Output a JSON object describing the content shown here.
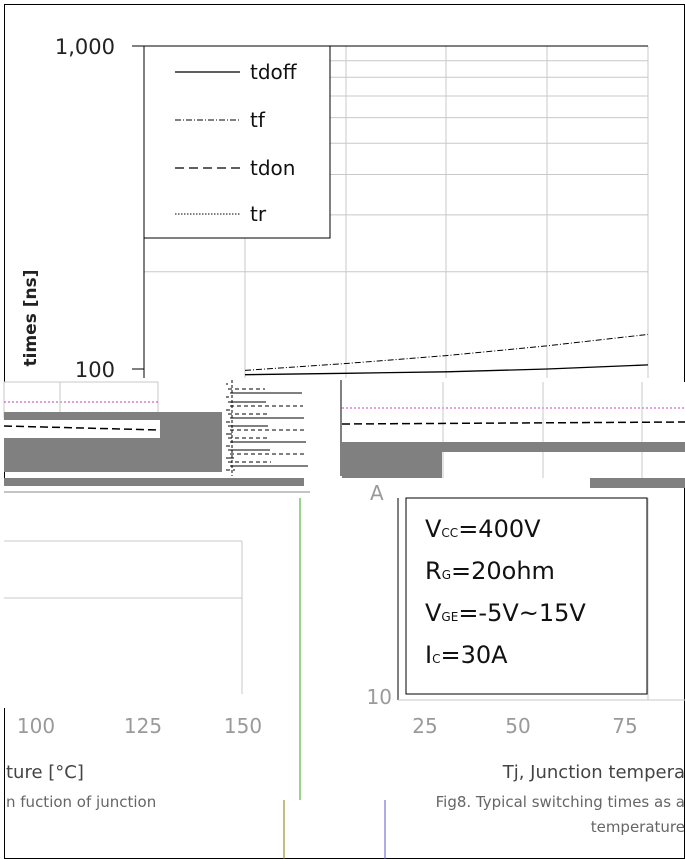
{
  "chart_data": [
    {
      "type": "line",
      "scale": "log-y",
      "ylabel": "times [ns]",
      "y_ticks": [
        "1,000",
        "100"
      ],
      "ylim": [
        100,
        1000
      ],
      "legend_position": "top-left",
      "x": [
        25,
        50,
        75,
        100,
        125,
        150
      ],
      "series": [
        {
          "name": "tdoff",
          "style": "solid",
          "values": [
            95,
            96,
            97,
            98,
            100,
            103
          ]
        },
        {
          "name": "tf",
          "style": "dash-dot",
          "values": [
            96,
            99,
            104,
            110,
            118,
            128
          ]
        },
        {
          "name": "tdon",
          "style": "dashed",
          "values": [
            null,
            null,
            null,
            null,
            null,
            null
          ]
        },
        {
          "name": "tr",
          "style": "dotted",
          "values": [
            null,
            null,
            null,
            null,
            null,
            null
          ]
        }
      ]
    },
    {
      "type": "line",
      "x_ticks": [
        "100",
        "125",
        "150"
      ],
      "xlabel": "ture [°C]",
      "caption": "n fuction of junction"
    },
    {
      "type": "line",
      "scale": "log-y",
      "y_ticks": [
        "10"
      ],
      "x_ticks": [
        "25",
        "50",
        "75"
      ],
      "xlabel": "Tj, Junction tempera",
      "caption_lines": [
        "Fig8. Typical switching times as a",
        "temperature"
      ],
      "conditions": [
        {
          "main": "V",
          "sub": "CC",
          "rest": "=400V"
        },
        {
          "main": "R",
          "sub": "G",
          "rest": "=20ohm"
        },
        {
          "main": "V",
          "sub": "GE",
          "rest": "=-5V~15V"
        },
        {
          "main": "I",
          "sub": "C",
          "rest": "=30A"
        }
      ]
    }
  ],
  "colors": {
    "axis": "#000000",
    "grid": "#c8c8c8",
    "overlay": "#808080",
    "accent_pink": "#c040c0",
    "accent_green": "#7ac36a"
  }
}
